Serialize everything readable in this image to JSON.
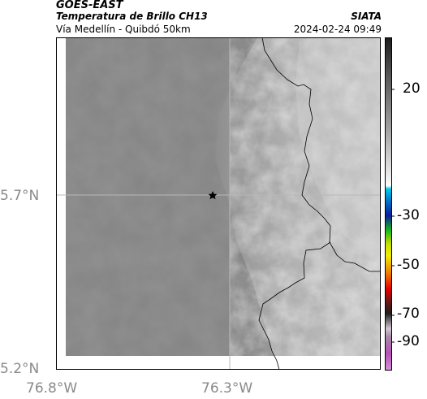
{
  "header": {
    "satellite": "GOES-EAST",
    "product": "Temperatura de Brillo CH13",
    "route": "Vía Medellín - Quibdó 50km",
    "source": "SIATA",
    "timestamp": "2024-02-24 09:49"
  },
  "map": {
    "lat_ticks": [
      "5.7°N",
      "5.2°N"
    ],
    "lon_ticks": [
      "76.8°W",
      "76.3°W"
    ],
    "marker": "star-marker"
  },
  "colorbar": {
    "ticks": [
      "20",
      "-30",
      "-50",
      "-70",
      "-90"
    ],
    "colors": {
      "white": "#ffffff",
      "cyan": "#00c8e6",
      "blue": "#0a1e9c",
      "green": "#18b818",
      "yellow": "#f0f000",
      "red": "#e60000",
      "dark": "#1e1e1e",
      "magenta": "#b850b8"
    }
  }
}
